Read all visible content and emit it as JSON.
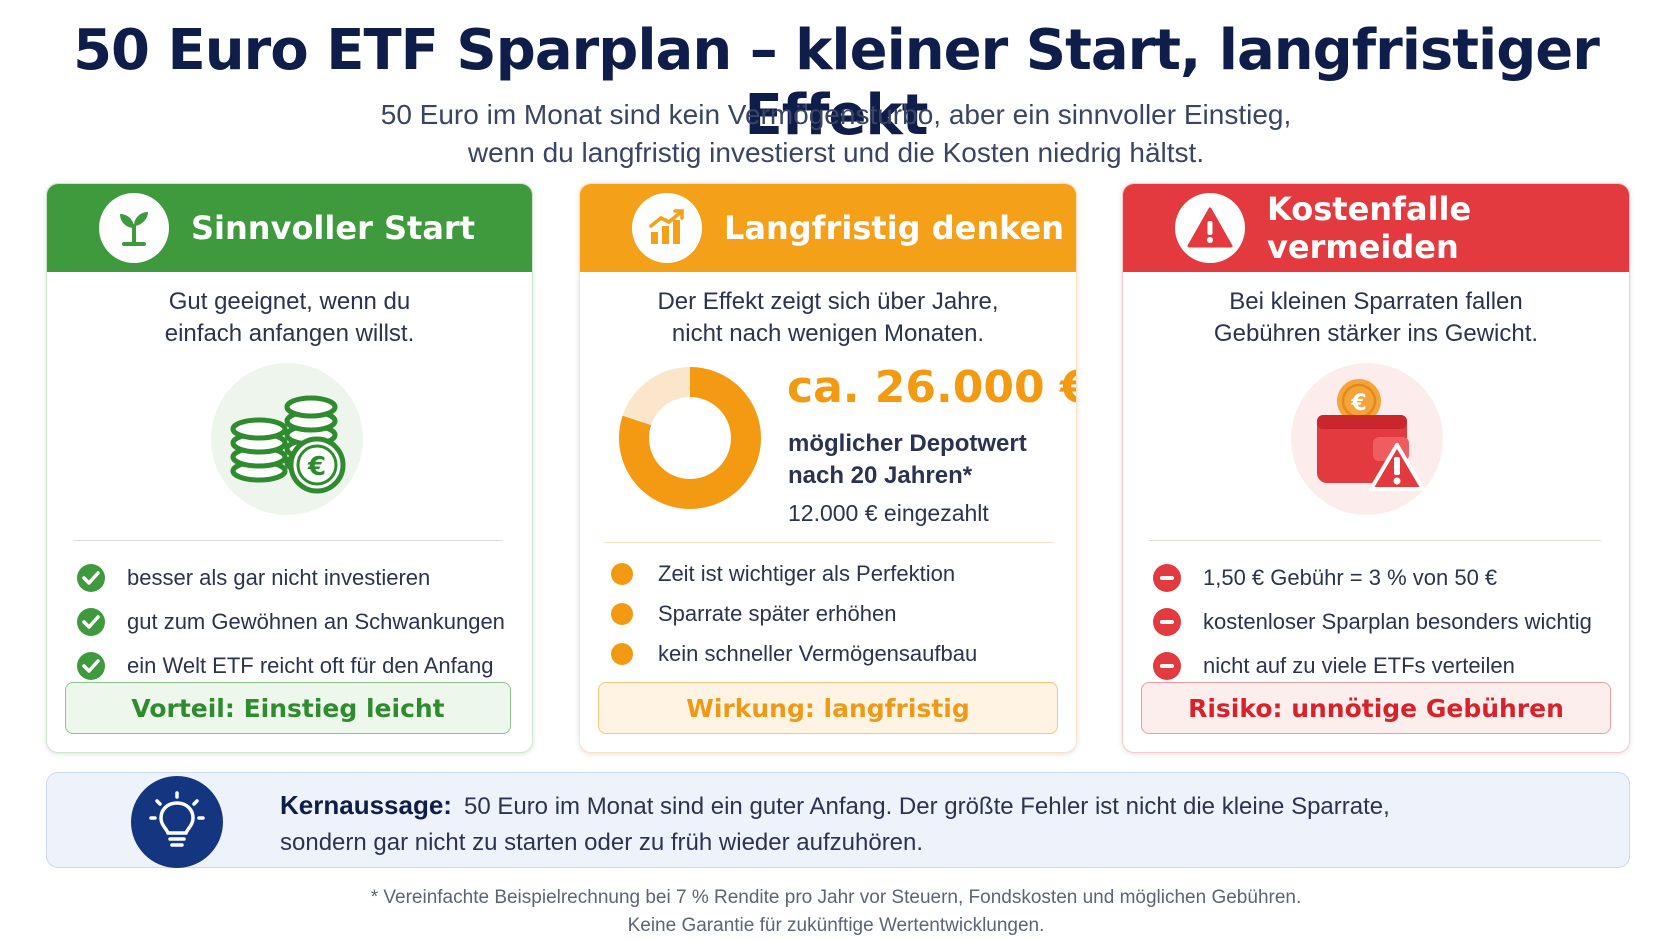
{
  "title": "50 Euro ETF Sparplan – kleiner Start, langfristiger Effekt",
  "subtitle_line1": "50 Euro im Monat sind kein Vermögensturbo, aber ein sinnvoller Einstieg,",
  "subtitle_line2": "wenn du langfristig investierst und die Kosten niedrig hältst.",
  "cards": {
    "start": {
      "title": "Sinnvoller Start",
      "icon": "sprout-icon",
      "desc_line1": "Gut geeignet, wenn du",
      "desc_line2": "einfach anfangen willst.",
      "illustration": "coin-stack-euro-icon",
      "bullets": [
        "besser als gar nicht investieren",
        "gut zum Gewöhnen an Schwankungen",
        "ein Welt ETF reicht oft für den Anfang"
      ],
      "tag": "Vorteil: Einstieg leicht",
      "color": "#3e9a3d"
    },
    "long": {
      "title": "Langfristig denken",
      "icon": "growth-chart-icon",
      "desc_line1": "Der Effekt zeigt sich über Jahre,",
      "desc_line2": "nicht nach wenigen Monaten.",
      "value": "ca. 26.000 €",
      "value_label_line1": "möglicher Depotwert",
      "value_label_line2": "nach 20 Jahren*",
      "deposited": "12.000 € eingezahlt",
      "donut_fraction": 0.8,
      "bullets": [
        "Zeit ist wichtiger als Perfektion",
        "Sparrate später erhöhen",
        "kein schneller Vermögensaufbau"
      ],
      "tag": "Wirkung: langfristig",
      "color": "#f4a019"
    },
    "cost": {
      "title": "Kostenfalle vermeiden",
      "icon": "warning-icon",
      "desc_line1": "Bei kleinen Sparraten fallen",
      "desc_line2": "Gebühren stärker ins Gewicht.",
      "illustration": "wallet-warning-icon",
      "bullets": [
        "1,50 € Gebühr = 3 % von 50 €",
        "kostenloser Sparplan besonders wichtig",
        "nicht auf zu viele ETFs verteilen"
      ],
      "tag": "Risiko: unnötige Gebühren",
      "color": "#e23a3f"
    }
  },
  "core": {
    "label": "Kernaussage:",
    "text_line1": "50 Euro im Monat sind ein guter Anfang. Der größte Fehler ist nicht die kleine Sparrate,",
    "text_line2": "sondern gar nicht zu starten oder zu früh wieder aufzuhören.",
    "icon": "lightbulb-icon"
  },
  "footnote_line1": "* Vereinfachte Beispielrechnung bei 7 % Rendite pro Jahr vor Steuern, Fondskosten und möglichen Gebühren.",
  "footnote_line2": "Keine Garantie für zukünftige Wertentwicklungen."
}
